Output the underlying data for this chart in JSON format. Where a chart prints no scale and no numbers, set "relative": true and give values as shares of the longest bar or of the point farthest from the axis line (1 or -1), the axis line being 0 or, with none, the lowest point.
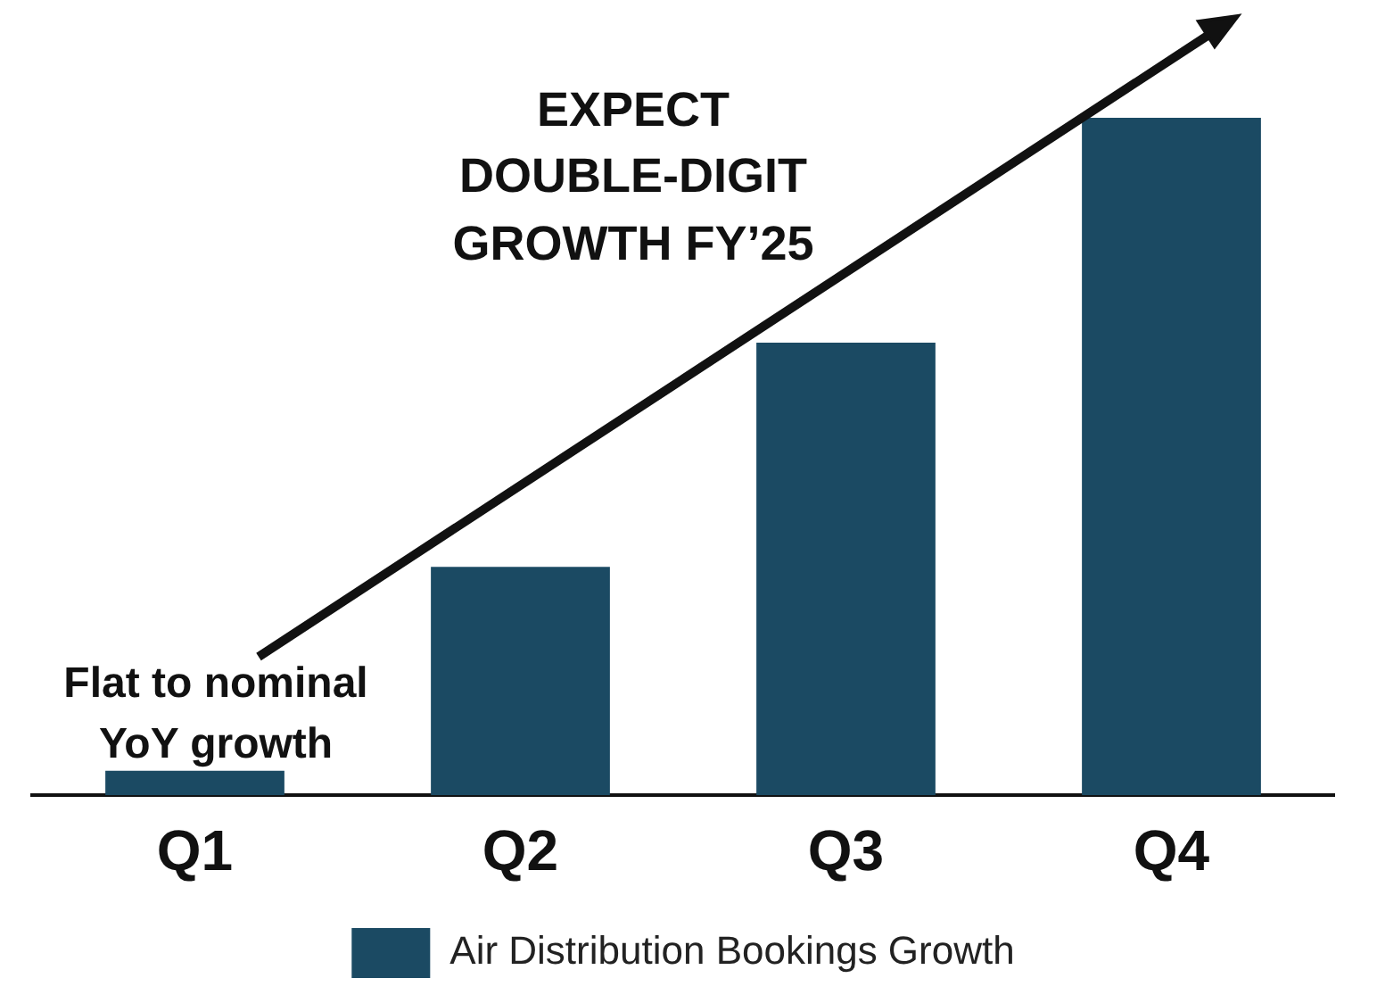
{
  "chart_data": {
    "type": "bar",
    "relative": true,
    "categories": [
      "Q1",
      "Q2",
      "Q3",
      "Q4"
    ],
    "series": [
      {
        "name": "Air Distribution Bookings Growth",
        "color": "#1b4a63",
        "values": [
          0.036,
          0.337,
          0.668,
          1
        ]
      }
    ],
    "annotations": [
      "EXPECT\nDOUBLE-DIGIT\nGROWTH FY’25",
      "Flat to nominal\nYoY growth"
    ],
    "legend": "bottom",
    "grid": false
  }
}
